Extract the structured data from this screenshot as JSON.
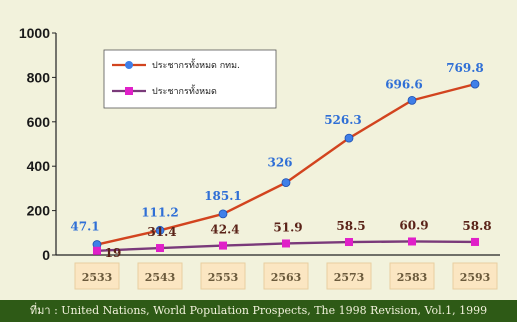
{
  "chart_data": {
    "type": "line",
    "categories": [
      "2533",
      "2543",
      "2553",
      "2563",
      "2573",
      "2583",
      "2593"
    ],
    "ylim": [
      0,
      1000
    ],
    "yticks": [
      0,
      200,
      400,
      600,
      800,
      1000
    ],
    "grid": false,
    "legend_position": "top-left",
    "series": [
      {
        "name": "ประชากรทั้งหมด กทม.",
        "values": [
          47.1,
          111.2,
          185.1,
          326,
          526.3,
          696.6,
          769.8
        ],
        "labels": [
          "47.1",
          "111.2",
          "185.1",
          "326",
          "526.3",
          "696.6",
          "769.8"
        ],
        "line_color": "#d2441f",
        "marker_color": "#3f7fe8",
        "label_color": "#2f6fd6",
        "marker": "diamond"
      },
      {
        "name": "ประชากรทั้งหมด",
        "values": [
          19,
          31.4,
          42.4,
          51.9,
          58.5,
          60.9,
          58.8
        ],
        "labels": [
          "19",
          "31.4",
          "42.4",
          "51.9",
          "58.5",
          "60.9",
          "58.8"
        ],
        "line_color": "#7a3a7a",
        "marker_color": "#e020c8",
        "label_color": "#5a2318",
        "marker": "square"
      }
    ]
  },
  "source_note": "ที่มา : United Nations, World Population Prospects, The 1998 Revision, Vol.1, 1999"
}
